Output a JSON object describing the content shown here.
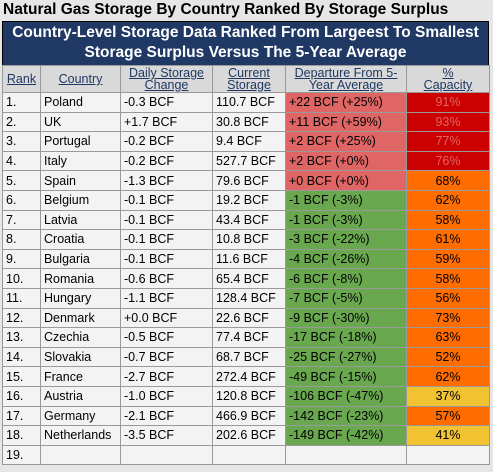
{
  "header": {
    "title": "Natural Gas Storage By Country Ranked By Storage Surplus",
    "subtitle": [
      "Country-Level Storage Data Ranked From Largeest To Smallest",
      "Storage Surplus Versus The 5-Year Average"
    ]
  },
  "table": {
    "columns": [
      [
        "Rank"
      ],
      [
        "Country"
      ],
      [
        "Daily Storage",
        "Change"
      ],
      [
        "Current",
        "Storage"
      ],
      [
        "Departure From 5-",
        "Year Average"
      ],
      [
        "%",
        "Capacity"
      ]
    ],
    "rows": [
      {
        "cells": [
          "1.",
          "Poland",
          "-0.3 BCF",
          "110.7 BCF",
          "+22 BCF (+25%)",
          "91%"
        ],
        "departure_color": "#e06666",
        "capacity_color": "#cc0000",
        "capacity_text": "#e06666"
      },
      {
        "cells": [
          "2.",
          "UK",
          "+1.7 BCF",
          "30.8 BCF",
          "+11 BCF (+59%)",
          "93%"
        ],
        "departure_color": "#e06666",
        "capacity_color": "#cc0000",
        "capacity_text": "#e06666"
      },
      {
        "cells": [
          "3.",
          "Portugal",
          "-0.2 BCF",
          "9.4 BCF",
          "+2 BCF (+25%)",
          "77%"
        ],
        "departure_color": "#e06666",
        "capacity_color": "#cc0000",
        "capacity_text": "#e06666"
      },
      {
        "cells": [
          "4.",
          "Italy",
          "-0.2 BCF",
          "527.7 BCF",
          "+2 BCF (+0%)",
          "76%"
        ],
        "departure_color": "#e06666",
        "capacity_color": "#cc0000",
        "capacity_text": "#e06666"
      },
      {
        "cells": [
          "5.",
          "Spain",
          "-1.3 BCF",
          "79.6 BCF",
          "+0 BCF (+0%)",
          "68%"
        ],
        "departure_color": "#e06666",
        "capacity_color": "#ff6d01",
        "capacity_text": "#000000"
      },
      {
        "cells": [
          "6.",
          "Belgium",
          "-0.1 BCF",
          "19.2 BCF",
          "-1 BCF (-3%)",
          "62%"
        ],
        "departure_color": "#6aa84f",
        "capacity_color": "#ff6d01",
        "capacity_text": "#000000"
      },
      {
        "cells": [
          "7.",
          "Latvia",
          "-0.1 BCF",
          "43.4 BCF",
          "-1 BCF (-3%)",
          "58%"
        ],
        "departure_color": "#6aa84f",
        "capacity_color": "#ff6d01",
        "capacity_text": "#000000"
      },
      {
        "cells": [
          "8.",
          "Croatia",
          "-0.1 BCF",
          "10.8 BCF",
          "-3 BCF (-22%)",
          "61%"
        ],
        "departure_color": "#6aa84f",
        "capacity_color": "#ff6d01",
        "capacity_text": "#000000"
      },
      {
        "cells": [
          "9.",
          "Bulgaria",
          "-0.1 BCF",
          "11.6 BCF",
          "-4 BCF (-26%)",
          "59%"
        ],
        "departure_color": "#6aa84f",
        "capacity_color": "#ff6d01",
        "capacity_text": "#000000"
      },
      {
        "cells": [
          "10.",
          "Romania",
          "-0.6 BCF",
          "65.4 BCF",
          "-6 BCF (-8%)",
          "58%"
        ],
        "departure_color": "#6aa84f",
        "capacity_color": "#ff6d01",
        "capacity_text": "#000000"
      },
      {
        "cells": [
          "11.",
          "Hungary",
          "-1.1 BCF",
          "128.4 BCF",
          "-7 BCF (-5%)",
          "56%"
        ],
        "departure_color": "#6aa84f",
        "capacity_color": "#ff6d01",
        "capacity_text": "#000000"
      },
      {
        "cells": [
          "12.",
          "Denmark",
          "+0.0 BCF",
          "22.6 BCF",
          "-9 BCF (-30%)",
          "73%"
        ],
        "departure_color": "#6aa84f",
        "capacity_color": "#ff6d01",
        "capacity_text": "#000000"
      },
      {
        "cells": [
          "13.",
          "Czechia",
          "-0.5 BCF",
          "77.4 BCF",
          "-17 BCF (-18%)",
          "63%"
        ],
        "departure_color": "#6aa84f",
        "capacity_color": "#ff6d01",
        "capacity_text": "#000000"
      },
      {
        "cells": [
          "14.",
          "Slovakia",
          "-0.7 BCF",
          "68.7 BCF",
          "-25 BCF (-27%)",
          "52%"
        ],
        "departure_color": "#6aa84f",
        "capacity_color": "#ff6d01",
        "capacity_text": "#000000"
      },
      {
        "cells": [
          "15.",
          "France",
          "-2.7 BCF",
          "272.4 BCF",
          "-49 BCF (-15%)",
          "62%"
        ],
        "departure_color": "#6aa84f",
        "capacity_color": "#ff6d01",
        "capacity_text": "#000000"
      },
      {
        "cells": [
          "16.",
          "Austria",
          "-1.0 BCF",
          "120.8 BCF",
          "-106 BCF (-47%)",
          "37%"
        ],
        "departure_color": "#6aa84f",
        "capacity_color": "#f1c232",
        "capacity_text": "#000000"
      },
      {
        "cells": [
          "17.",
          "Germany",
          "-2.1 BCF",
          "466.9 BCF",
          "-142 BCF (-23%)",
          "57%"
        ],
        "departure_color": "#6aa84f",
        "capacity_color": "#ff6d01",
        "capacity_text": "#000000"
      },
      {
        "cells": [
          "18.",
          "Netherlands",
          "-3.5 BCF",
          "202.6 BCF",
          "-149 BCF (-42%)",
          "41%"
        ],
        "departure_color": "#6aa84f",
        "capacity_color": "#f1c232",
        "capacity_text": "#000000"
      },
      {
        "cells": [
          "19."
        ]
      }
    ]
  }
}
